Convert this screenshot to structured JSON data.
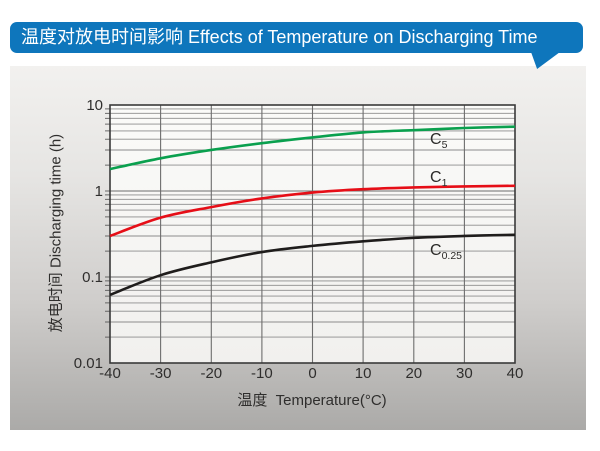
{
  "header": {
    "title": "温度对放电时间影响 Effects of Temperature on Discharging Time"
  },
  "colors": {
    "banner_bg": "#0e76bc",
    "banner_text": "#ffffff",
    "panel_top": "#f2f1ef",
    "panel_bottom": "#abaaa8",
    "plot_bg_top": "#fbfbf9",
    "plot_bg_bottom": "#f1f0ee",
    "grid_minor": "#8c8c8c",
    "grid_major": "#6d6d6d",
    "axis_border": "#3a3a3a",
    "text": "#2f2e2d"
  },
  "chart_data": {
    "type": "line",
    "title": "温度对放电时间影响 Effects of Temperature on Discharging Time",
    "xlabel": "温度  Temperature(°C)",
    "ylabel": "放电时间 Discharging time (h)",
    "x": [
      -40,
      -30,
      -20,
      -10,
      0,
      10,
      20,
      30,
      40
    ],
    "x_tick_labels": [
      "-40",
      "-30",
      "-20",
      "-10",
      "0",
      "10",
      "20",
      "30",
      "40"
    ],
    "y_ticks": [
      {
        "label": "10",
        "value": 10
      },
      {
        "label": "1",
        "value": 1
      },
      {
        "label": "0.1",
        "value": 0.1
      },
      {
        "label": "0.01",
        "value": 0.01
      }
    ],
    "xlim": [
      -40,
      40
    ],
    "ylim": [
      0.01,
      10
    ],
    "y_scale": "log",
    "grid": "major and log-minor gridlines, boxed axes",
    "legend_position": "inline labels on plot",
    "series": [
      {
        "name": "C5",
        "label_main": "C",
        "label_sub": "5",
        "color": "#0aa04e",
        "values": [
          1.8,
          2.4,
          3.0,
          3.6,
          4.2,
          4.8,
          5.1,
          5.4,
          5.6
        ]
      },
      {
        "name": "C1",
        "label_main": "C",
        "label_sub": "1",
        "color": "#e60e17",
        "values": [
          0.3,
          0.49,
          0.65,
          0.82,
          0.96,
          1.05,
          1.1,
          1.13,
          1.15
        ]
      },
      {
        "name": "C0.25",
        "label_main": "C",
        "label_sub": "0.25",
        "color": "#1f1d1c",
        "values": [
          0.062,
          0.105,
          0.148,
          0.195,
          0.23,
          0.26,
          0.285,
          0.3,
          0.31
        ]
      }
    ]
  }
}
